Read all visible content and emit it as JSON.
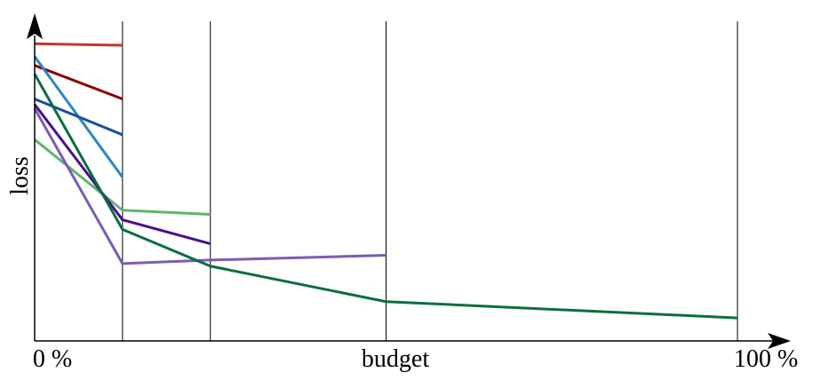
{
  "chart_data": {
    "type": "line",
    "xlabel": "budget",
    "ylabel": "loss",
    "x_ticks": [
      "0 %",
      "100 %"
    ],
    "xlim": [
      0,
      100
    ],
    "ylim": [
      0,
      1
    ],
    "grid": "vertical lines at budget checkpoints",
    "checkpoints": [
      12.5,
      25,
      50,
      100
    ],
    "series": [
      {
        "color": "#c0392b",
        "points": [
          [
            0,
            0.93
          ],
          [
            12.5,
            0.925
          ]
        ]
      },
      {
        "color": "#8b0000",
        "points": [
          [
            0,
            0.862
          ],
          [
            12.5,
            0.757
          ]
        ]
      },
      {
        "color": "#2e86c1",
        "points": [
          [
            0,
            0.89
          ],
          [
            12.5,
            0.512
          ]
        ]
      },
      {
        "color": "#1a4fa0",
        "points": [
          [
            0,
            0.757
          ],
          [
            12.5,
            0.645
          ]
        ]
      },
      {
        "color": "#5fb56a",
        "points": [
          [
            0,
            0.63
          ],
          [
            12.5,
            0.409
          ],
          [
            25,
            0.396
          ]
        ]
      },
      {
        "color": "#4b0f8a",
        "points": [
          [
            0,
            0.74
          ],
          [
            12.5,
            0.379
          ],
          [
            25,
            0.304
          ]
        ]
      },
      {
        "color": "#7b5cb5",
        "points": [
          [
            0,
            0.727
          ],
          [
            12.5,
            0.242
          ],
          [
            25,
            0.253
          ],
          [
            50,
            0.268
          ]
        ]
      },
      {
        "color": "#0b6e3f",
        "points": [
          [
            0,
            0.835
          ],
          [
            12.5,
            0.349
          ],
          [
            25,
            0.234
          ],
          [
            50,
            0.123
          ],
          [
            100,
            0.072
          ]
        ]
      }
    ]
  }
}
